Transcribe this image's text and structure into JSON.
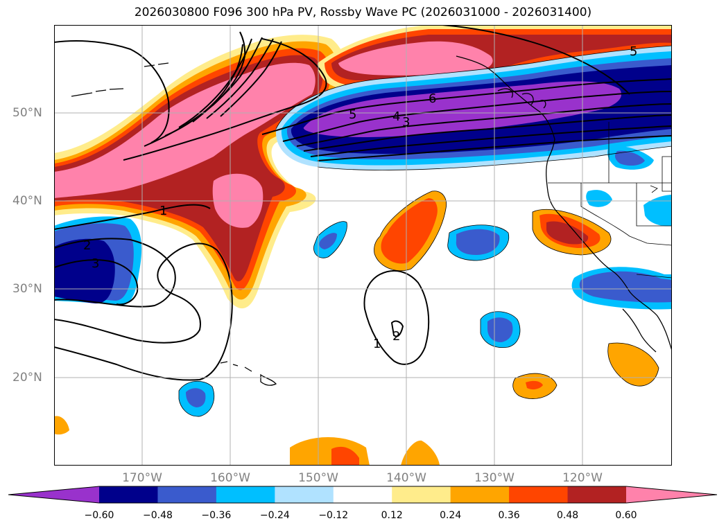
{
  "title": "2026030800 F096 300 hPa PV, Rossby Wave PC (2026031000 - 2026031400)",
  "lon_labels": [
    "170°W",
    "160°W",
    "150°W",
    "140°W",
    "130°W",
    "120°W"
  ],
  "lat_labels": [
    "50°N",
    "40°N",
    "30°N",
    "20°N"
  ],
  "contour_labels": [
    "1",
    "2",
    "3",
    "5",
    "4",
    "3",
    "6",
    "1",
    "2",
    "5"
  ],
  "colorbar": {
    "ticks": [
      "−0.60",
      "−0.48",
      "−0.36",
      "−0.24",
      "−0.12",
      "0.12",
      "0.24",
      "0.36",
      "0.48",
      "0.60"
    ],
    "colors": [
      "#9932cc",
      "#00008b",
      "#3a5bcd",
      "#00bfff",
      "#b0e2ff",
      "#ffffff",
      "#ffec8b",
      "#ffa500",
      "#ff4500",
      "#b22222",
      "#ff82ab"
    ]
  }
}
